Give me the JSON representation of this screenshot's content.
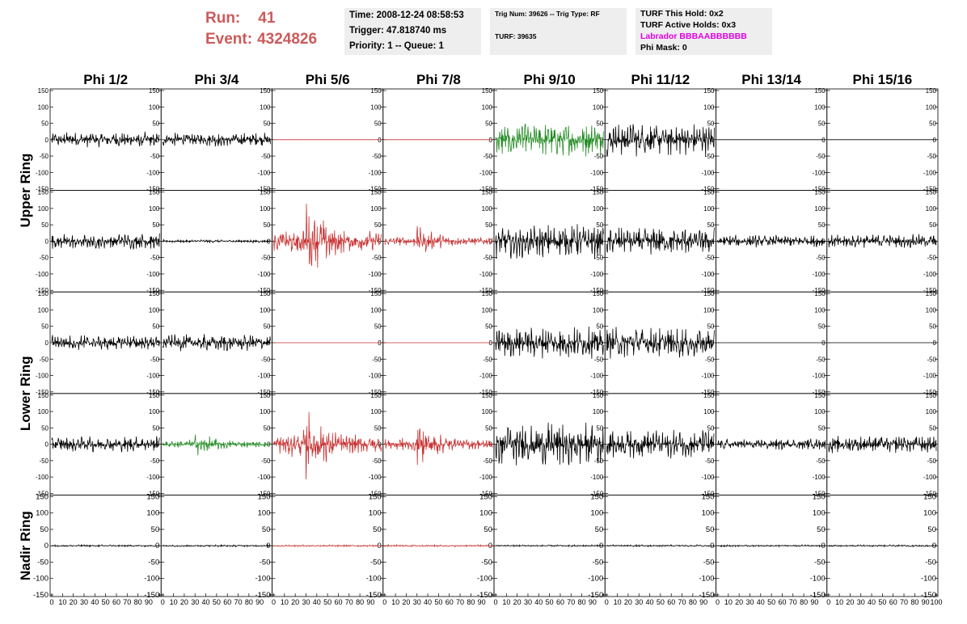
{
  "header": {
    "run_label": "Run:",
    "run_value": "41",
    "event_label": "Event:",
    "event_value": "4324826"
  },
  "info_box_1": {
    "time": "Time: 2008-12-24 08:58:53",
    "trigger": "Trigger: 47.818740 ms",
    "priority": "Priority: 1 -- Queue: 1"
  },
  "info_box_2": {
    "trig": "Trig Num: 39626 -- Trig Type: RF",
    "turf": "TURF: 39635"
  },
  "info_box_3": {
    "hold": "TURF This Hold: 0x2",
    "active": "TURF Active Holds: 0x3",
    "labrador": "Labrador BBBAABBBBBB",
    "phimask": "Phi Mask: 0"
  },
  "colors": {
    "header_red": "#cc5a5a",
    "trace_black": "#000000",
    "trace_green": "#228b22",
    "trace_red": "#c83232",
    "magenta": "#e000e0"
  },
  "chart_data": {
    "type": "line",
    "column_titles": [
      "Phi 1/2",
      "Phi 3/4",
      "Phi 5/6",
      "Phi 7/8",
      "Phi 9/10",
      "Phi 11/12",
      "Phi 13/14",
      "Phi 15/16"
    ],
    "ring_labels": [
      "Upper Ring",
      "Lower Ring",
      "Nadir Ring"
    ],
    "ylim": [
      -150,
      150
    ],
    "xlim": [
      0,
      100
    ],
    "y_ticks": [
      "150",
      "100",
      "50",
      "0",
      "-50",
      "-100",
      "-150"
    ],
    "x_ticks": [
      "0",
      "10",
      "20",
      "30",
      "40",
      "50",
      "60",
      "70",
      "80",
      "90",
      "100"
    ],
    "rows": [
      {
        "panels": [
          {
            "color": "black",
            "amplitude": 25,
            "burst": false
          },
          {
            "color": "black",
            "amplitude": 22,
            "burst": false
          },
          {
            "color": "red",
            "amplitude": 0,
            "burst": false
          },
          {
            "color": "red",
            "amplitude": 0,
            "burst": false
          },
          {
            "color": "green",
            "amplitude": 55,
            "burst": false
          },
          {
            "color": "black",
            "amplitude": 55,
            "burst": false
          },
          {
            "color": "black",
            "amplitude": 0,
            "burst": false
          },
          {
            "color": "black",
            "amplitude": 0,
            "burst": false
          }
        ]
      },
      {
        "panels": [
          {
            "color": "black",
            "amplitude": 25,
            "burst": false
          },
          {
            "color": "black",
            "amplitude": 5,
            "burst": false
          },
          {
            "color": "red",
            "amplitude": 130,
            "burst": true
          },
          {
            "color": "red",
            "amplitude": 50,
            "burst": true
          },
          {
            "color": "black",
            "amplitude": 55,
            "burst": false
          },
          {
            "color": "black",
            "amplitude": 45,
            "burst": false
          },
          {
            "color": "black",
            "amplitude": 20,
            "burst": false
          },
          {
            "color": "black",
            "amplitude": 22,
            "burst": false
          }
        ]
      },
      {
        "panels": [
          {
            "color": "black",
            "amplitude": 25,
            "burst": false
          },
          {
            "color": "black",
            "amplitude": 28,
            "burst": false
          },
          {
            "color": "red",
            "amplitude": 0,
            "burst": false
          },
          {
            "color": "red",
            "amplitude": 0,
            "burst": false
          },
          {
            "color": "black",
            "amplitude": 50,
            "burst": false
          },
          {
            "color": "black",
            "amplitude": 50,
            "burst": false
          },
          {
            "color": "black",
            "amplitude": 0,
            "burst": false
          },
          {
            "color": "black",
            "amplitude": 0,
            "burst": false
          }
        ]
      },
      {
        "panels": [
          {
            "color": "black",
            "amplitude": 25,
            "burst": false
          },
          {
            "color": "green",
            "amplitude": 40,
            "burst": true
          },
          {
            "color": "red",
            "amplitude": 120,
            "burst": true
          },
          {
            "color": "red",
            "amplitude": 70,
            "burst": true
          },
          {
            "color": "black",
            "amplitude": 70,
            "burst": false
          },
          {
            "color": "black",
            "amplitude": 45,
            "burst": false
          },
          {
            "color": "black",
            "amplitude": 18,
            "burst": false
          },
          {
            "color": "black",
            "amplitude": 28,
            "burst": false
          }
        ]
      },
      {
        "panels": [
          {
            "color": "black",
            "amplitude": 3,
            "burst": false
          },
          {
            "color": "black",
            "amplitude": 3,
            "burst": false
          },
          {
            "color": "red",
            "amplitude": 3,
            "burst": false
          },
          {
            "color": "red",
            "amplitude": 3,
            "burst": false
          },
          {
            "color": "black",
            "amplitude": 3,
            "burst": false
          },
          {
            "color": "black",
            "amplitude": 3,
            "burst": false
          },
          {
            "color": "black",
            "amplitude": 3,
            "burst": false
          },
          {
            "color": "black",
            "amplitude": 3,
            "burst": false
          }
        ]
      }
    ]
  }
}
